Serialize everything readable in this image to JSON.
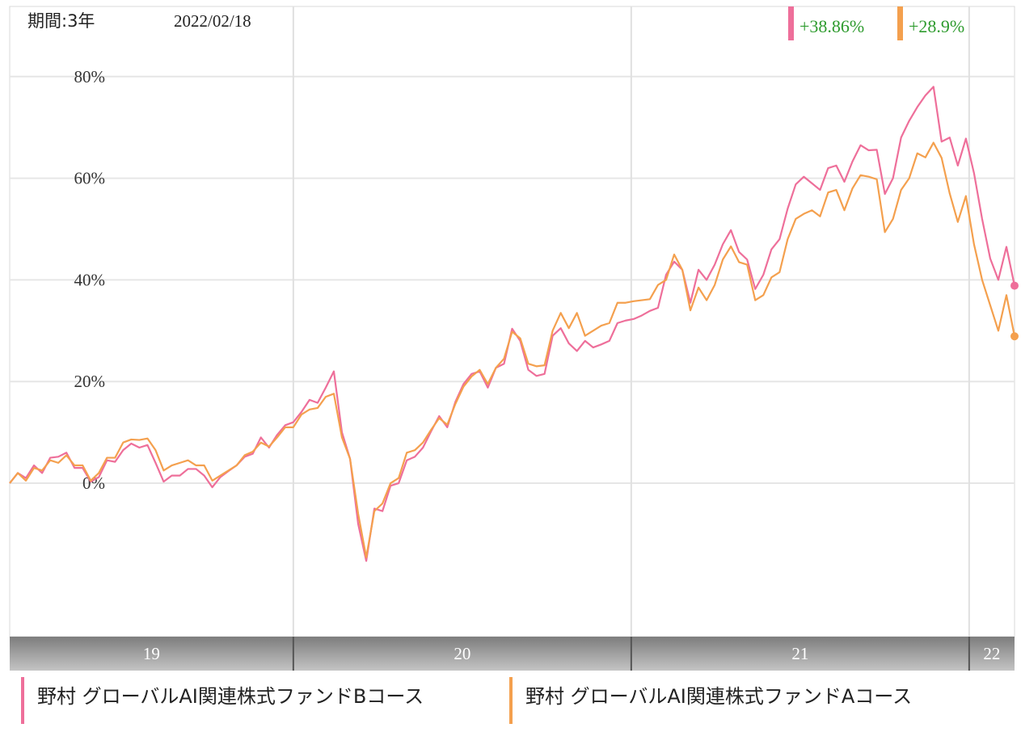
{
  "chart_data": {
    "type": "line",
    "period_label": "期間:3年",
    "date": "2022/02/18",
    "categories": [
      null,
      null,
      null,
      null,
      null,
      null,
      null,
      null,
      null,
      null,
      null,
      null,
      null,
      null,
      null,
      null,
      null,
      null,
      null,
      null,
      null,
      null,
      null,
      null,
      null,
      null,
      null,
      null,
      null,
      null,
      null,
      null,
      null,
      null,
      null,
      null,
      null,
      null,
      null,
      null,
      null,
      null,
      null,
      null,
      null,
      null,
      null,
      null,
      null,
      null,
      null,
      null,
      null,
      null,
      null,
      null,
      null,
      null,
      null,
      null,
      null,
      null,
      null,
      null,
      null,
      null,
      null,
      null,
      null,
      null,
      null,
      null,
      null,
      null,
      null,
      null,
      null,
      null,
      null,
      null,
      null,
      null,
      null,
      null,
      null,
      null,
      null,
      null,
      null,
      null,
      null,
      null,
      null,
      null,
      null,
      null,
      null,
      null,
      null,
      null,
      null,
      null,
      null,
      null,
      null,
      null,
      null,
      null,
      null,
      null,
      null,
      null,
      null,
      null,
      null,
      null,
      null,
      null,
      null,
      null,
      null,
      null,
      null,
      null,
      null
    ],
    "xlim": [
      0,
      124
    ],
    "xticks": [
      {
        "value": -6.3,
        "label": "19"
      },
      {
        "value": 35.0,
        "label": "20"
      },
      {
        "value": 76.7,
        "label": "21"
      },
      {
        "value": 118.4,
        "label": "22"
      }
    ],
    "ylim": [
      -30.2,
      93.8
    ],
    "yticks": [
      {
        "value": 0,
        "label": "0%"
      },
      {
        "value": 20,
        "label": "20%"
      },
      {
        "value": 40,
        "label": "40%"
      },
      {
        "value": 60,
        "label": "60%"
      },
      {
        "value": 80,
        "label": "80%"
      }
    ],
    "grid": true,
    "series": [
      {
        "name": "野村 グローバルAI関連株式ファンドBコース",
        "color": "#ee6f9a",
        "change_label": "+38.86%",
        "values": [
          0,
          2,
          1,
          3.5,
          2,
          5,
          5.2,
          6,
          3,
          3,
          0.3,
          1.2,
          4.5,
          4.2,
          6.5,
          7.8,
          7,
          7.5,
          4,
          0.3,
          1.5,
          1.5,
          2.8,
          2.8,
          1.5,
          -0.8,
          1.2,
          2.4,
          3.5,
          5.2,
          5.8,
          9,
          7,
          9.5,
          11.4,
          12,
          14,
          16.4,
          15.8,
          18.8,
          22,
          10,
          4.8,
          -8,
          -15.3,
          -5,
          -5.5,
          -0.5,
          0,
          4.5,
          5.2,
          7,
          10.2,
          13.2,
          11,
          16,
          19.5,
          21.5,
          22,
          18.8,
          22.7,
          23.5,
          30.4,
          28,
          22.3,
          21.1,
          21.5,
          29,
          30.5,
          27.5,
          26,
          28,
          26.7,
          27.3,
          28,
          31.5,
          32,
          32.3,
          33,
          33.9,
          34.5,
          41,
          43.6,
          42,
          35.5,
          42,
          40,
          43,
          47,
          49.8,
          45.5,
          44,
          38.2,
          41,
          46,
          48,
          54,
          58.8,
          60.3,
          59,
          57.7,
          62,
          62.5,
          59.3,
          63.3,
          66.5,
          65.5,
          65.6,
          56.9,
          60,
          68,
          71.3,
          74,
          76.3,
          78,
          67.2,
          68,
          62.5,
          67.8,
          61,
          52,
          44.2,
          40,
          46.5,
          38.86
        ]
      },
      {
        "name": "野村 グローバルAI関連株式ファンドAコース",
        "color": "#f4a04e",
        "change_label": "+28.9%",
        "values": [
          0,
          2,
          0.5,
          3,
          2.5,
          4.5,
          4,
          5.5,
          3.5,
          3.5,
          0.5,
          2,
          5,
          5,
          8,
          8.6,
          8.5,
          8.8,
          6.5,
          2.5,
          3.5,
          4,
          4.5,
          3.5,
          3.5,
          0.5,
          1.5,
          2.5,
          3.5,
          5.5,
          6.2,
          8,
          7.2,
          9,
          11,
          11,
          13.5,
          14.5,
          14.8,
          17,
          17.6,
          9,
          4.8,
          -6,
          -14.6,
          -5.5,
          -4,
          0,
          1,
          6,
          6.5,
          8,
          10.5,
          12.8,
          11.5,
          15.6,
          19,
          21,
          22.3,
          19.5,
          22.7,
          24.5,
          29.8,
          28.5,
          23.5,
          23,
          23.2,
          30,
          33.5,
          30.5,
          33.5,
          29,
          30,
          31,
          31.5,
          35.5,
          35.5,
          35.8,
          36,
          36.2,
          39,
          40,
          45,
          42,
          34,
          38.5,
          36,
          39,
          44,
          46.6,
          43.5,
          43,
          36,
          37,
          40.5,
          41.5,
          48,
          52,
          53,
          53.7,
          52.5,
          57.2,
          57.7,
          53.7,
          58,
          60.6,
          60.3,
          59.8,
          49.4,
          52,
          57.7,
          60,
          64.9,
          64.1,
          67,
          64,
          57,
          51.4,
          56.5,
          47,
          40,
          35,
          30,
          37,
          28.9
        ]
      }
    ]
  }
}
